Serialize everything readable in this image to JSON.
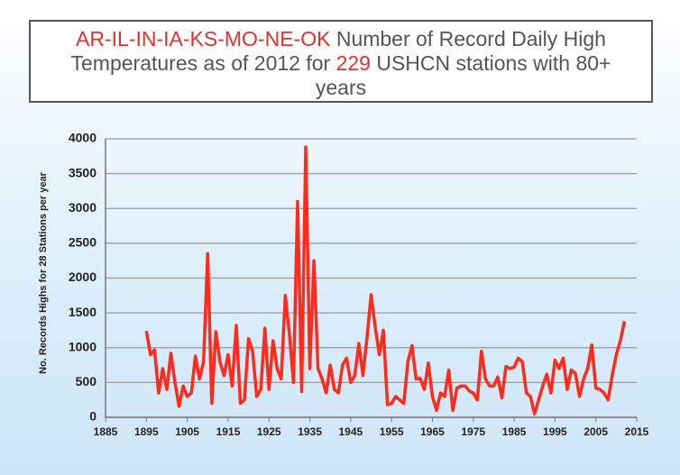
{
  "chart_data": {
    "type": "line",
    "title": [
      {
        "text": "AR-IL-IN-IA-KS-MO-NE-OK",
        "color": "#e8302a"
      },
      {
        "text": " Number of Record Daily High Temperatures as of 2012 for ",
        "color": "#555555"
      },
      {
        "text": "229",
        "color": "#e8302a"
      },
      {
        "text": " USHCN stations with 80+ years",
        "color": "#555555"
      }
    ],
    "y_label": "No. Records Highs for 28 Stations per year",
    "x": [
      1895,
      1896,
      1897,
      1898,
      1899,
      1900,
      1901,
      1902,
      1903,
      1904,
      1905,
      1906,
      1907,
      1908,
      1909,
      1910,
      1911,
      1912,
      1913,
      1914,
      1915,
      1916,
      1917,
      1918,
      1919,
      1920,
      1921,
      1922,
      1923,
      1924,
      1925,
      1926,
      1927,
      1928,
      1929,
      1930,
      1931,
      1932,
      1933,
      1934,
      1935,
      1936,
      1937,
      1938,
      1939,
      1940,
      1941,
      1942,
      1943,
      1944,
      1945,
      1946,
      1947,
      1948,
      1949,
      1950,
      1951,
      1952,
      1953,
      1954,
      1955,
      1956,
      1957,
      1958,
      1959,
      1960,
      1961,
      1962,
      1963,
      1964,
      1965,
      1966,
      1967,
      1968,
      1969,
      1970,
      1971,
      1972,
      1973,
      1974,
      1975,
      1976,
      1977,
      1978,
      1979,
      1980,
      1981,
      1982,
      1983,
      1984,
      1985,
      1986,
      1987,
      1988,
      1989,
      1990,
      1991,
      1992,
      1993,
      1994,
      1995,
      1996,
      1997,
      1998,
      1999,
      2000,
      2001,
      2002,
      2003,
      2004,
      2005,
      2006,
      2007,
      2008,
      2009,
      2010,
      2011,
      2012
    ],
    "series": [
      {
        "color": "#ff2a1a",
        "values": [
          1240,
          900,
          970,
          350,
          700,
          400,
          920,
          500,
          160,
          450,
          300,
          350,
          880,
          550,
          800,
          2350,
          200,
          1230,
          800,
          600,
          900,
          450,
          1320,
          200,
          250,
          1130,
          950,
          300,
          400,
          1280,
          400,
          1100,
          700,
          550,
          1750,
          1200,
          500,
          3100,
          370,
          3880,
          700,
          2250,
          700,
          550,
          350,
          750,
          400,
          350,
          750,
          850,
          500,
          600,
          1060,
          600,
          1150,
          1760,
          1300,
          900,
          1250,
          180,
          200,
          300,
          250,
          200,
          800,
          1030,
          550,
          560,
          400,
          780,
          300,
          100,
          350,
          300,
          680,
          100,
          420,
          450,
          450,
          380,
          350,
          250,
          950,
          550,
          450,
          450,
          580,
          280,
          730,
          700,
          720,
          850,
          800,
          350,
          300,
          50,
          250,
          450,
          620,
          350,
          820,
          700,
          850,
          400,
          680,
          630,
          300,
          550,
          700,
          1040,
          420,
          400,
          350,
          250,
          600,
          900,
          1100,
          1380
        ]
      }
    ],
    "xlim": [
      1885,
      2015
    ],
    "xticks": [
      1885,
      1895,
      1905,
      1915,
      1925,
      1935,
      1945,
      1955,
      1965,
      1975,
      1985,
      1995,
      2005,
      2015
    ],
    "ylim": [
      0,
      4000
    ],
    "yticks": [
      0,
      500,
      1000,
      1500,
      2000,
      2500,
      3000,
      3500,
      4000
    ],
    "grid": true
  }
}
